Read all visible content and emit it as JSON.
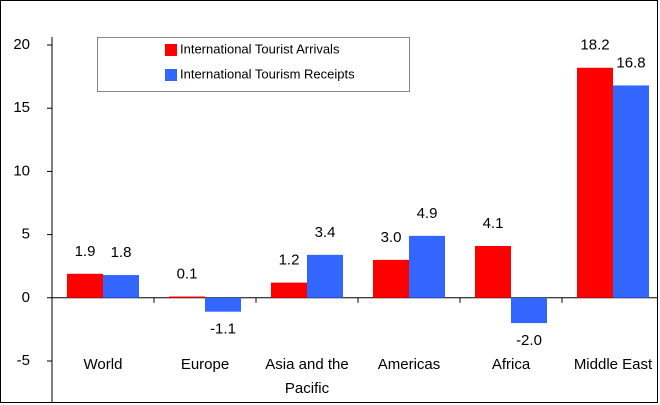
{
  "chart_data": {
    "type": "bar",
    "categories": [
      "World",
      "Europe",
      "Asia and the Pacific",
      "Americas",
      "Africa",
      "Middle East"
    ],
    "series": [
      {
        "name": "International Tourist Arrivals",
        "color": "#ff0000",
        "values": [
          1.9,
          0.1,
          1.2,
          3.0,
          4.1,
          18.2
        ],
        "value_labels": [
          "1.9",
          "0.1",
          "1.2",
          "3.0",
          "4.1",
          "18.2"
        ]
      },
      {
        "name": "International Tourism Receipts",
        "color": "#3366ff",
        "values": [
          1.8,
          -1.1,
          3.4,
          4.9,
          -2.0,
          16.8
        ],
        "value_labels": [
          "1.8",
          "-1.1",
          "3.4",
          "4.9",
          "-2.0",
          "16.8"
        ]
      }
    ],
    "ylim": [
      -5,
      20
    ],
    "yticks": [
      -5,
      0,
      5,
      10,
      15,
      20
    ],
    "grid": false,
    "legend": "top-left"
  }
}
